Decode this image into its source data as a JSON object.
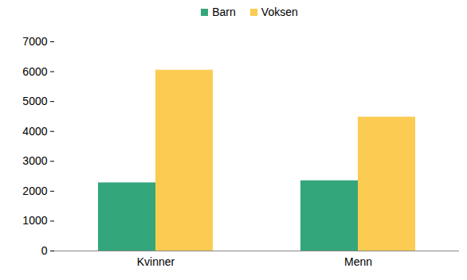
{
  "chart_data": {
    "type": "bar",
    "categories": [
      "Kvinner",
      "Menn"
    ],
    "series": [
      {
        "name": "Barn",
        "color": "#33a67c",
        "values": [
          2280,
          2350
        ]
      },
      {
        "name": "Voksen",
        "color": "#fccb52",
        "values": [
          6050,
          4480
        ]
      }
    ],
    "ylim": [
      0,
      7000
    ],
    "yticks": [
      0,
      1000,
      2000,
      3000,
      4000,
      5000,
      6000,
      7000
    ],
    "grid": false,
    "legend": "top"
  }
}
